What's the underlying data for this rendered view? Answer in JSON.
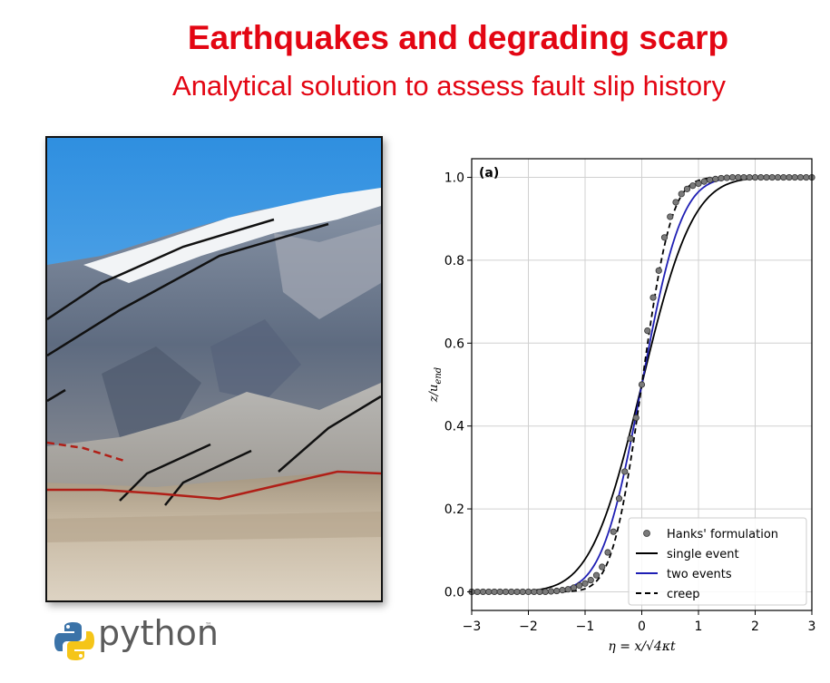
{
  "slide": {
    "title": "Earthquakes and degrading scarp",
    "subtitle": "Analytical solution to assess fault slip history"
  },
  "python_logo": {
    "text": "python",
    "tm": "™",
    "icon": "python-logo-icon"
  },
  "photo": {
    "icon": "mountain-fault-scarp-photo"
  },
  "chart_data": {
    "type": "line",
    "panel_label": "(a)",
    "xlabel": "η = x/√4κt",
    "ylabel": "z/u_end",
    "xlim": [
      -3,
      3
    ],
    "ylim": [
      0,
      1
    ],
    "x_ticks": [
      "−3",
      "−2",
      "−1",
      "0",
      "1",
      "2",
      "3"
    ],
    "x_tick_values": [
      -3,
      -2,
      -1,
      0,
      1,
      2,
      3
    ],
    "y_ticks": [
      "0.0",
      "0.2",
      "0.4",
      "0.6",
      "0.8",
      "1.0"
    ],
    "y_tick_values": [
      0,
      0.2,
      0.4,
      0.6,
      0.8,
      1.0
    ],
    "grid": true,
    "legend_position": "bottom-right",
    "series": [
      {
        "name": "Hanks' formulation",
        "style": "markers",
        "color": "#7a7a7a",
        "x": [
          -3.0,
          -2.9,
          -2.8,
          -2.7,
          -2.6,
          -2.5,
          -2.4,
          -2.3,
          -2.2,
          -2.1,
          -2.0,
          -1.9,
          -1.8,
          -1.7,
          -1.6,
          -1.5,
          -1.4,
          -1.3,
          -1.2,
          -1.1,
          -1.0,
          -0.9,
          -0.8,
          -0.7,
          -0.6,
          -0.5,
          -0.4,
          -0.3,
          -0.2,
          -0.1,
          0.0,
          0.1,
          0.2,
          0.3,
          0.4,
          0.5,
          0.6,
          0.7,
          0.8,
          0.9,
          1.0,
          1.1,
          1.2,
          1.3,
          1.4,
          1.5,
          1.6,
          1.7,
          1.8,
          1.9,
          2.0,
          2.1,
          2.2,
          2.3,
          2.4,
          2.5,
          2.6,
          2.7,
          2.8,
          2.9,
          3.0
        ],
        "y": [
          0.0,
          0.0,
          0.0,
          0.0,
          0.0,
          0.0,
          0.0,
          0.0,
          0.0,
          0.0,
          0.0,
          0.0,
          0.0,
          0.0,
          0.001,
          0.002,
          0.004,
          0.006,
          0.01,
          0.015,
          0.02,
          0.028,
          0.04,
          0.06,
          0.095,
          0.145,
          0.225,
          0.29,
          0.37,
          0.42,
          0.5,
          0.63,
          0.71,
          0.775,
          0.855,
          0.905,
          0.94,
          0.96,
          0.972,
          0.98,
          0.985,
          0.99,
          0.994,
          0.996,
          0.998,
          0.999,
          1.0,
          1.0,
          1.0,
          1.0,
          1.0,
          1.0,
          1.0,
          1.0,
          1.0,
          1.0,
          1.0,
          1.0,
          1.0,
          1.0,
          1.0
        ]
      },
      {
        "name": "single event",
        "style": "solid",
        "color": "#000000",
        "width_param": 1.0
      },
      {
        "name": "two events",
        "style": "solid",
        "color": "#1f1fb4",
        "width_param": 0.78
      },
      {
        "name": "creep",
        "style": "dashed",
        "color": "#000000",
        "width_param": 0.58
      }
    ]
  }
}
